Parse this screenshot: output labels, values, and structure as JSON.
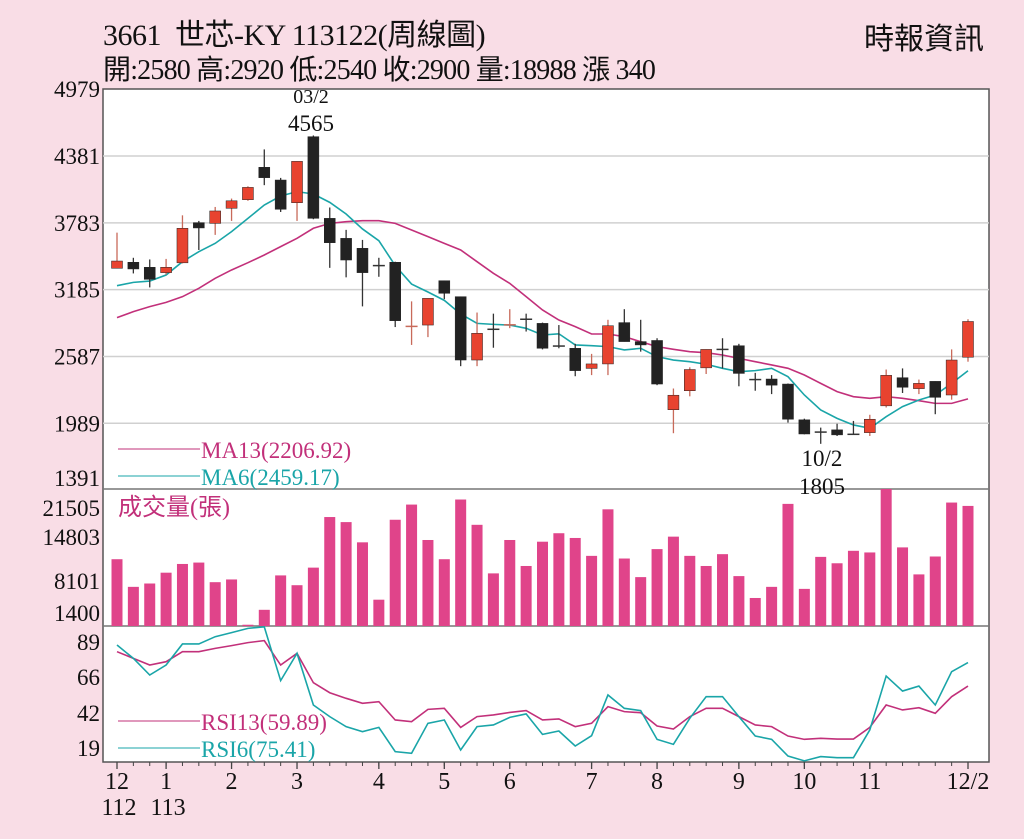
{
  "header": {
    "title": "3661  世芯-KY 113122(周線圖)",
    "summary": "開:2580 高:2920 低:2540 收:2900 量:18988 漲 340",
    "source": "時報資訊"
  },
  "colors": {
    "background": "#f9dde6",
    "up": "#e8432f",
    "down": "#222222",
    "ma6": "#1aa5a8",
    "ma13": "#c2307a",
    "volume": "#e0448a",
    "rsi6": "#1aa5a8",
    "rsi13": "#c2307a"
  },
  "chart_data": [
    {
      "type": "candlestick",
      "panel": "price",
      "yticks": [
        "4979",
        "4381",
        "3783",
        "3185",
        "2587",
        "1989",
        "1391"
      ],
      "ylim": [
        1391,
        4979
      ],
      "grid": true,
      "annotations": [
        {
          "date": "03/2",
          "value": "4565",
          "kind": "high"
        },
        {
          "date": "10/2",
          "value": "1805",
          "kind": "low"
        }
      ],
      "legend": [
        {
          "key": "ma13",
          "label": "MA13(2206.92)"
        },
        {
          "key": "ma6",
          "label": "MA6(2459.17)"
        }
      ],
      "ohlc": [
        [
          3376,
          3695,
          3376,
          3441
        ],
        [
          3430,
          3470,
          3330,
          3370
        ],
        [
          3385,
          3455,
          3205,
          3277
        ],
        [
          3337,
          3460,
          3320,
          3385
        ],
        [
          3425,
          3850,
          3420,
          3734
        ],
        [
          3784,
          3800,
          3540,
          3737
        ],
        [
          3778,
          3925,
          3675,
          3889
        ],
        [
          3913,
          4000,
          3800,
          3980
        ],
        [
          3990,
          4110,
          3980,
          4100
        ],
        [
          4280,
          4440,
          4120,
          4187
        ],
        [
          4166,
          4185,
          3880,
          3904
        ],
        [
          3963,
          4333,
          3800,
          4333
        ],
        [
          4554,
          4565,
          3815,
          3823
        ],
        [
          3823,
          3920,
          3380,
          3605
        ],
        [
          3644,
          3720,
          3295,
          3450
        ],
        [
          3555,
          3630,
          3035,
          3337
        ],
        [
          3400,
          3470,
          3300,
          3395
        ],
        [
          3430,
          3435,
          2850,
          2907
        ],
        [
          2854,
          3080,
          2690,
          2856
        ],
        [
          2868,
          3107,
          2760,
          3107
        ],
        [
          3265,
          3265,
          3100,
          3152
        ],
        [
          3122,
          3122,
          2500,
          2555
        ],
        [
          2555,
          2980,
          2500,
          2794
        ],
        [
          2830,
          2970,
          2665,
          2825
        ],
        [
          2860,
          3010,
          2840,
          2870
        ],
        [
          2920,
          2970,
          2810,
          2918
        ],
        [
          2883,
          2890,
          2650,
          2660
        ],
        [
          2680,
          2868,
          2660,
          2678
        ],
        [
          2660,
          2700,
          2410,
          2460
        ],
        [
          2480,
          2610,
          2420,
          2520
        ],
        [
          2520,
          2915,
          2420,
          2862
        ],
        [
          2890,
          3010,
          2720,
          2720
        ],
        [
          2720,
          2915,
          2630,
          2690
        ],
        [
          2730,
          2750,
          2330,
          2340
        ],
        [
          2110,
          2300,
          1900,
          2240
        ],
        [
          2280,
          2490,
          2230,
          2470
        ],
        [
          2485,
          2650,
          2430,
          2650
        ],
        [
          2650,
          2750,
          2480,
          2648
        ],
        [
          2683,
          2700,
          2320,
          2435
        ],
        [
          2380,
          2440,
          2280,
          2375
        ],
        [
          2385,
          2420,
          2250,
          2330
        ],
        [
          2340,
          2345,
          1995,
          2025
        ],
        [
          2020,
          2030,
          1890,
          1893
        ],
        [
          1910,
          1950,
          1805,
          1908
        ],
        [
          1930,
          1985,
          1875,
          1885
        ],
        [
          1890,
          2010,
          1885,
          1888
        ],
        [
          1905,
          2065,
          1875,
          2025
        ],
        [
          2145,
          2470,
          2130,
          2418
        ],
        [
          2397,
          2480,
          2260,
          2311
        ],
        [
          2299,
          2380,
          2250,
          2346
        ],
        [
          2364,
          2364,
          2070,
          2221
        ],
        [
          2242,
          2650,
          2200,
          2555
        ],
        [
          2580,
          2920,
          2540,
          2900
        ]
      ],
      "ma6": [
        3220,
        3250,
        3262,
        3316,
        3435,
        3525,
        3599,
        3704,
        3823,
        3942,
        4023,
        4062,
        4041,
        3966,
        3862,
        3728,
        3623,
        3400,
        3235,
        3164,
        3089,
        2967,
        2883,
        2874,
        2868,
        2839,
        2779,
        2790,
        2690,
        2683,
        2675,
        2645,
        2660,
        2585,
        2555,
        2540,
        2517,
        2481,
        2451,
        2460,
        2481,
        2406,
        2242,
        2108,
        2033,
        1974,
        1944,
        2048,
        2138,
        2197,
        2242,
        2346,
        2459
      ],
      "ma13": [
        2934,
        2988,
        3033,
        3071,
        3122,
        3197,
        3286,
        3361,
        3426,
        3495,
        3570,
        3644,
        3734,
        3778,
        3793,
        3802,
        3802,
        3778,
        3719,
        3659,
        3599,
        3540,
        3435,
        3331,
        3241,
        3122,
        3003,
        2913,
        2854,
        2788,
        2788,
        2764,
        2719,
        2675,
        2651,
        2630,
        2621,
        2600,
        2570,
        2540,
        2511,
        2481,
        2421,
        2346,
        2272,
        2227,
        2212,
        2227,
        2212,
        2191,
        2167,
        2167,
        2207
      ]
    },
    {
      "type": "bar",
      "panel": "volume",
      "label": "成交量(張)",
      "yticks": [
        "21505",
        "14803",
        "8101",
        "1400"
      ],
      "ylim": [
        0,
        21505
      ],
      "values": [
        10560,
        6190,
        6720,
        8430,
        9810,
        10030,
        6930,
        7360,
        200,
        2560,
        8000,
        6450,
        9230,
        17230,
        16430,
        13230,
        4160,
        16800,
        19200,
        13600,
        10560,
        20000,
        16000,
        8320,
        13600,
        9490,
        13330,
        14670,
        13920,
        11090,
        18450,
        10670,
        7730,
        12160,
        14130,
        11090,
        9490,
        11360,
        7890,
        4430,
        6190,
        19310,
        5870,
        10930,
        9920,
        11890,
        11630,
        21870,
        12430,
        8160,
        10990,
        19520,
        18988
      ]
    },
    {
      "type": "line",
      "panel": "rsi",
      "yticks": [
        "89",
        "66",
        "42",
        "19"
      ],
      "ylim": [
        10,
        99
      ],
      "legend": [
        {
          "key": "rsi13",
          "label": "RSI13(59.89)"
        },
        {
          "key": "rsi6",
          "label": "RSI6(75.41)"
        }
      ],
      "rsi13": [
        82.6,
        78.2,
        73.8,
        76.0,
        82.6,
        82.6,
        84.8,
        86.6,
        88.6,
        89.9,
        73.8,
        81.5,
        62.1,
        55.5,
        51.8,
        48.5,
        49.6,
        37.5,
        36.4,
        44.5,
        45.2,
        32.6,
        39.7,
        40.8,
        42.5,
        43.7,
        37.5,
        38.2,
        33.1,
        35.3,
        46.3,
        43.0,
        42.3,
        33.5,
        31.5,
        39.7,
        45.2,
        45.2,
        39.7,
        34.2,
        33.1,
        26.9,
        24.7,
        25.4,
        24.9,
        24.9,
        32.6,
        47.4,
        44.1,
        45.6,
        41.9,
        52.9,
        59.89
      ],
      "rsi6": [
        87.0,
        78.2,
        67.2,
        73.8,
        87.7,
        87.7,
        92.5,
        95.2,
        98.0,
        99.0,
        63.5,
        81.5,
        47.4,
        39.7,
        33.1,
        29.8,
        32.6,
        16.6,
        15.5,
        35.3,
        37.5,
        17.7,
        33.1,
        34.2,
        39.2,
        41.5,
        28.0,
        30.2,
        20.3,
        27.1,
        54.0,
        45.2,
        43.7,
        24.7,
        21.4,
        38.6,
        52.9,
        52.9,
        39.7,
        26.9,
        24.7,
        13.7,
        10.5,
        13.3,
        12.6,
        12.6,
        30.9,
        66.5,
        56.6,
        59.9,
        47.4,
        69.4,
        75.41
      ]
    }
  ],
  "xaxis": {
    "months": [
      {
        "label": "12",
        "year": "112",
        "index": 0
      },
      {
        "label": "1",
        "year": "113",
        "index": 3
      },
      {
        "label": "2",
        "index": 7
      },
      {
        "label": "3",
        "index": 11
      },
      {
        "label": "4",
        "index": 16
      },
      {
        "label": "5",
        "index": 20
      },
      {
        "label": "6",
        "index": 24
      },
      {
        "label": "7",
        "index": 29
      },
      {
        "label": "8",
        "index": 33
      },
      {
        "label": "9",
        "index": 38
      },
      {
        "label": "10",
        "index": 42
      },
      {
        "label": "11",
        "index": 46
      },
      {
        "label": "12/2",
        "index": 52
      }
    ]
  }
}
